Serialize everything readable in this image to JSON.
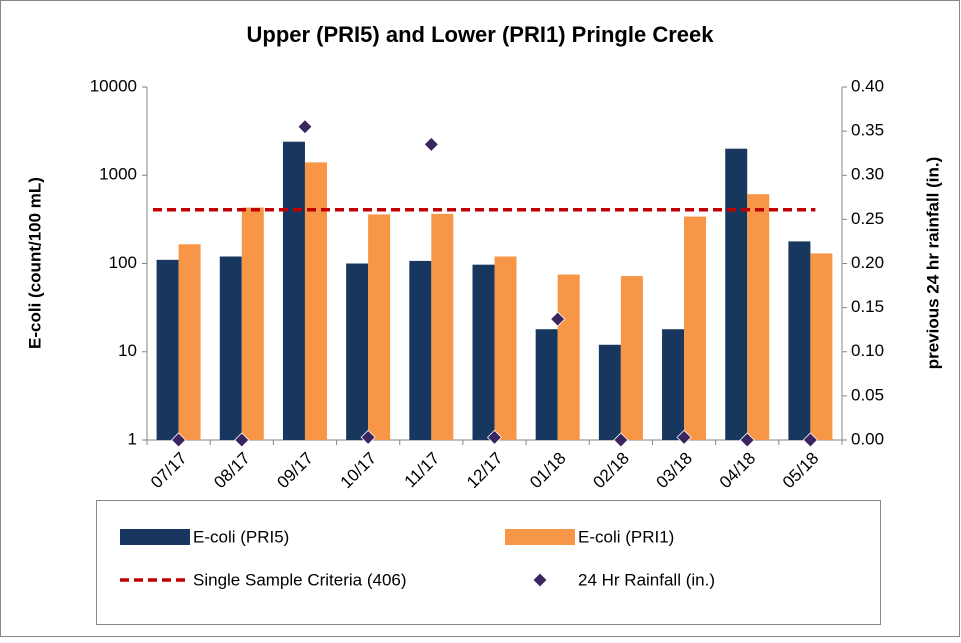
{
  "chart_data": {
    "type": "bar",
    "title": "Upper (PRI5) and Lower (PRI1) Pringle Creek",
    "ylabel": "E-coli (count/100 mL)",
    "y2label": "previous 24 hr rainfall (in.)",
    "categories": [
      "07/17",
      "08/17",
      "09/17",
      "10/17",
      "11/17",
      "12/17",
      "01/18",
      "02/18",
      "03/18",
      "04/18",
      "05/18"
    ],
    "series": [
      {
        "name": "E-coli (PRI5)",
        "color": "#17375e",
        "values": [
          110,
          120,
          2400,
          100,
          107,
          97,
          18,
          12,
          18,
          2000,
          178
        ]
      },
      {
        "name": "E-coli (PRI1)",
        "color": "#f79646",
        "values": [
          165,
          430,
          1400,
          360,
          365,
          120,
          75,
          72,
          340,
          610,
          130
        ]
      },
      {
        "name": "24 Hr Rainfall (in.)",
        "color": "#3b2560",
        "axis": "y2",
        "type": "scatter",
        "values": [
          0,
          0,
          0.355,
          0.003,
          0.335,
          0.003,
          0.137,
          0,
          0.003,
          0,
          0
        ]
      }
    ],
    "criteria": {
      "name": "Single Sample Criteria (406)",
      "value": 406,
      "color": "#c00000"
    },
    "yscale": "log",
    "ylim": [
      1,
      10000
    ],
    "yticks": [
      1,
      10,
      100,
      1000,
      10000
    ],
    "y2lim": [
      0,
      0.4
    ],
    "y2ticks": [
      {
        "value": 0,
        "label": "0.00"
      },
      {
        "value": 0.05,
        "label": "0.05"
      },
      {
        "value": 0.1,
        "label": "0.10"
      },
      {
        "value": 0.15,
        "label": "0.15"
      },
      {
        "value": 0.2,
        "label": "0.20"
      },
      {
        "value": 0.25,
        "label": "0.25"
      },
      {
        "value": 0.3,
        "label": "0.30"
      },
      {
        "value": 0.35,
        "label": "0.35"
      },
      {
        "value": 0.4,
        "label": "0.40"
      }
    ],
    "legend": "bottom"
  }
}
